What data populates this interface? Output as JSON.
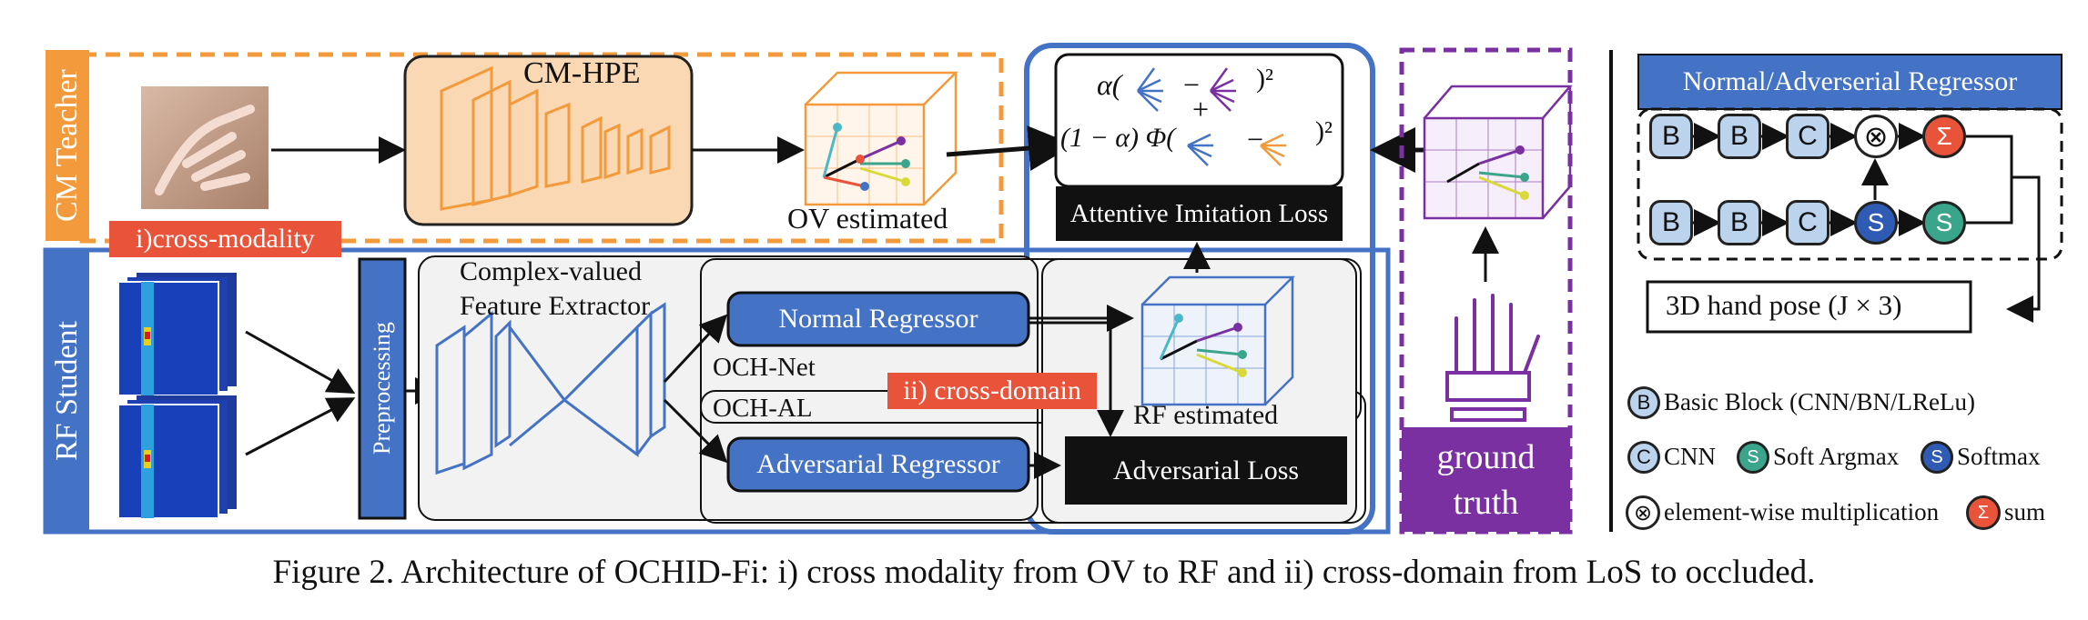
{
  "teacher": {
    "side_label": "CM Teacher",
    "model_label": "CM-HPE",
    "ov_label": "OV estimated"
  },
  "student": {
    "side_label": "RF Student",
    "preprocessing_label": "Preprocessing",
    "feature_extractor_label_1": "Complex-valued",
    "feature_extractor_label_2": "Feature Extractor",
    "normal_regressor_label": "Normal Regressor",
    "adversarial_regressor_label": "Adversarial Regressor",
    "och_net_label": "OCH-Net",
    "och_al_label": "OCH-AL",
    "rf_label": "RF estimated",
    "adversarial_loss_label": "Adversarial Loss"
  },
  "badges": {
    "cross_modality": "i)cross-modality",
    "cross_domain": "ii) cross-domain"
  },
  "loss": {
    "alpha_term": "α(",
    "alpha_sq": ")²",
    "plus": "+",
    "one_minus_alpha": "(1 − α) Φ(",
    "phi_sq": ")²",
    "minus": "−",
    "label": "Attentive Imitation Loss"
  },
  "ground_truth": {
    "line1": "ground",
    "line2": "truth"
  },
  "regressor_panel": {
    "title": "Normal/Adverserial Regressor",
    "row1": [
      "B",
      "B",
      "C",
      "⊗",
      "Σ"
    ],
    "row2": [
      "B",
      "B",
      "C",
      "S",
      "S"
    ],
    "output_label": "3D hand pose (J × 3)"
  },
  "legend": {
    "items": [
      {
        "symbol": "B",
        "text": "Basic Block (CNN/BN/LReLu)"
      },
      {
        "symbol": "C",
        "text": "CNN"
      },
      {
        "symbol": "S",
        "text": "Soft Argmax"
      },
      {
        "symbol": "S",
        "text": "Softmax"
      },
      {
        "symbol": "⊗",
        "text": "element-wise multiplication"
      },
      {
        "symbol": "Σ",
        "text": "sum"
      }
    ]
  },
  "caption": "Figure 2. Architecture of OCHID-Fi: i) cross modality from OV to RF and ii) cross-domain from LoS to occluded.",
  "colors": {
    "orange": "#f39a3c",
    "blue": "#4472c4",
    "purple": "#7a30a0",
    "red": "#e8533a",
    "teal": "#3aa58a",
    "light_blue": "#bcd3ee"
  }
}
